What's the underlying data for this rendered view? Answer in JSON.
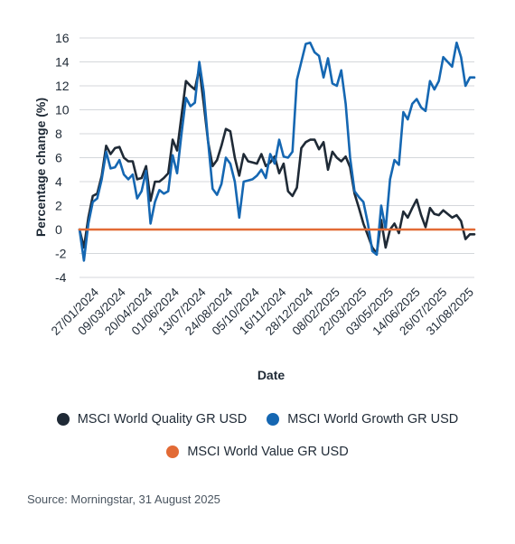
{
  "chart_data": {
    "type": "line",
    "xlabel": "Date",
    "ylabel": "Percentage change (%)",
    "ylim": [
      -4,
      16
    ],
    "yticks": [
      16,
      14,
      12,
      10,
      8,
      6,
      4,
      2,
      0,
      -2,
      -4
    ],
    "xticks": [
      "27/01/2024",
      "09/03/2024",
      "20/04/2024",
      "01/06/2024",
      "13/07/2024",
      "24/08/2024",
      "05/10/2024",
      "16/11/2024",
      "28/12/2024",
      "08/02/2025",
      "22/03/2025",
      "03/05/2025",
      "14/06/2025",
      "26/07/2025",
      "31/08/2025"
    ],
    "grid": "horizontal",
    "legend_position": "bottom",
    "series": [
      {
        "name": "MSCI World Quality GR USD",
        "color": "#1f2a36",
        "values": [
          0,
          -1.5,
          1.0,
          2.8,
          3.0,
          4.5,
          7.0,
          6.3,
          6.8,
          6.9,
          6.0,
          5.7,
          5.7,
          4.2,
          4.3,
          5.3,
          2.4,
          4.0,
          4.0,
          4.3,
          4.7,
          7.5,
          6.6,
          9.5,
          12.4,
          12.0,
          11.7,
          13.5,
          10.5,
          7.3,
          5.3,
          5.8,
          7.0,
          8.4,
          8.2,
          6.0,
          4.5,
          6.3,
          5.7,
          5.6,
          5.5,
          6.3,
          5.3,
          5.6,
          6.1,
          4.7,
          5.5,
          3.2,
          2.8,
          3.5,
          6.8,
          7.3,
          7.5,
          7.5,
          6.7,
          7.3,
          5.0,
          6.5,
          6.0,
          5.7,
          6.1,
          5.2,
          3.0,
          1.8,
          0.5,
          -0.5,
          -1.5,
          -2.0,
          0.8,
          -1.5,
          0.0,
          0.5,
          -0.3,
          1.5,
          1.0,
          1.8,
          2.5,
          1.2,
          0.2,
          1.8,
          1.3,
          1.2,
          1.6,
          1.3,
          1.0,
          1.2,
          0.7,
          -0.8,
          -0.4,
          -0.4
        ]
      },
      {
        "name": "MSCI World Growth GR USD",
        "color": "#1567b2",
        "values": [
          0,
          -2.6,
          0.5,
          2.3,
          2.6,
          4.2,
          6.5,
          5.1,
          5.2,
          5.8,
          4.6,
          4.2,
          4.6,
          2.6,
          3.2,
          4.9,
          0.5,
          2.3,
          3.3,
          3.0,
          3.2,
          6.2,
          4.7,
          8.0,
          11.0,
          10.3,
          10.6,
          14.0,
          11.5,
          7.3,
          3.4,
          2.9,
          3.8,
          6.0,
          5.5,
          4.0,
          1.0,
          4.0,
          4.1,
          4.2,
          4.5,
          5.0,
          4.3,
          6.3,
          5.5,
          7.5,
          6.1,
          6.0,
          6.5,
          12.5,
          14.0,
          15.5,
          15.6,
          14.8,
          14.5,
          12.7,
          14.3,
          12.2,
          12.0,
          13.3,
          10.5,
          6.0,
          3.2,
          2.7,
          2.3,
          0.5,
          -1.8,
          -2.1,
          2.0,
          0.0,
          4.2,
          5.8,
          5.4,
          9.8,
          9.2,
          10.5,
          10.9,
          10.2,
          9.9,
          12.4,
          11.7,
          12.4,
          14.4,
          14.0,
          13.6,
          15.6,
          14.4,
          12.0,
          12.7,
          12.7
        ]
      },
      {
        "name": "MSCI World Value GR USD",
        "color": "#e26a35",
        "values": [
          0,
          0,
          0,
          0,
          0,
          0,
          0,
          0,
          0,
          0,
          0,
          0,
          0,
          0,
          0,
          0,
          0,
          0,
          0,
          0,
          0,
          0,
          0,
          0,
          0,
          0,
          0,
          0,
          0,
          0,
          0,
          0,
          0,
          0,
          0,
          0,
          0,
          0,
          0,
          0,
          0,
          0,
          0,
          0,
          0,
          0,
          0,
          0,
          0,
          0,
          0,
          0,
          0,
          0,
          0,
          0,
          0,
          0,
          0,
          0,
          0,
          0,
          0,
          0,
          0,
          0,
          0,
          0,
          0,
          0,
          0,
          0,
          0,
          0,
          0,
          0,
          0,
          0,
          0,
          0,
          0,
          0,
          0,
          0,
          0,
          0,
          0,
          0,
          0,
          0
        ]
      }
    ]
  },
  "source": "Source: Morningstar, 31 August 2025"
}
